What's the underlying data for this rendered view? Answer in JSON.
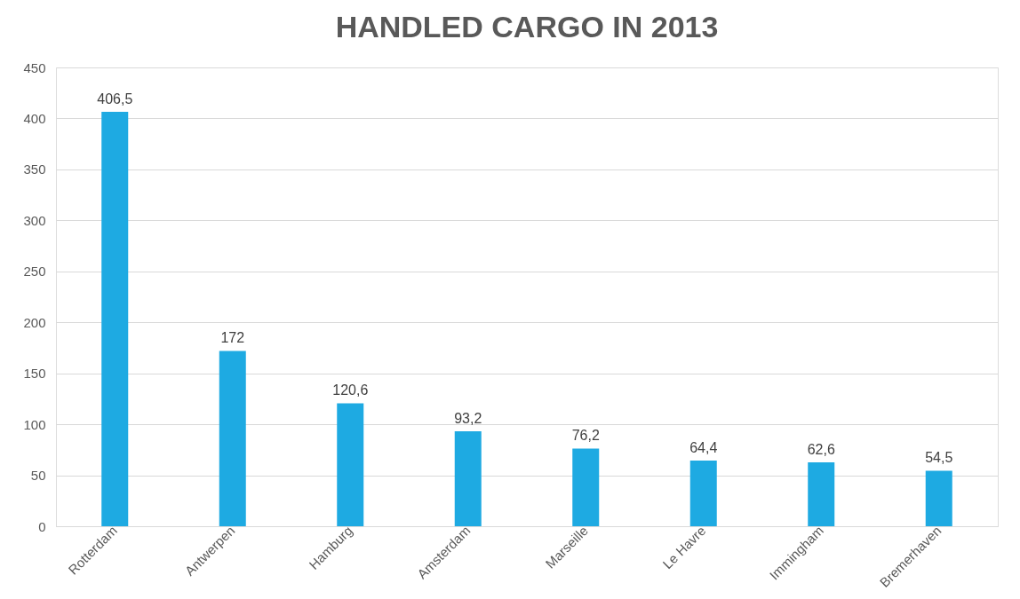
{
  "chart_data": {
    "type": "bar",
    "title": "HANDLED CARGO IN 2013",
    "categories": [
      "Rotterdam",
      "Antwerpen",
      "Hamburg",
      "Amsterdam",
      "Marseille",
      "Le Havre",
      "Immingham",
      "Bremerhaven"
    ],
    "values": [
      406.5,
      172,
      120.6,
      93.2,
      76.2,
      64.4,
      62.6,
      54.5
    ],
    "value_labels": [
      "406,5",
      "172",
      "120,6",
      "93,2",
      "76,2",
      "64,4",
      "62,6",
      "54,5"
    ],
    "color": "#1eaae2",
    "ylim": [
      0,
      450
    ],
    "yticks": [
      0,
      50,
      100,
      150,
      200,
      250,
      300,
      350,
      400,
      450
    ],
    "grid": "y"
  }
}
